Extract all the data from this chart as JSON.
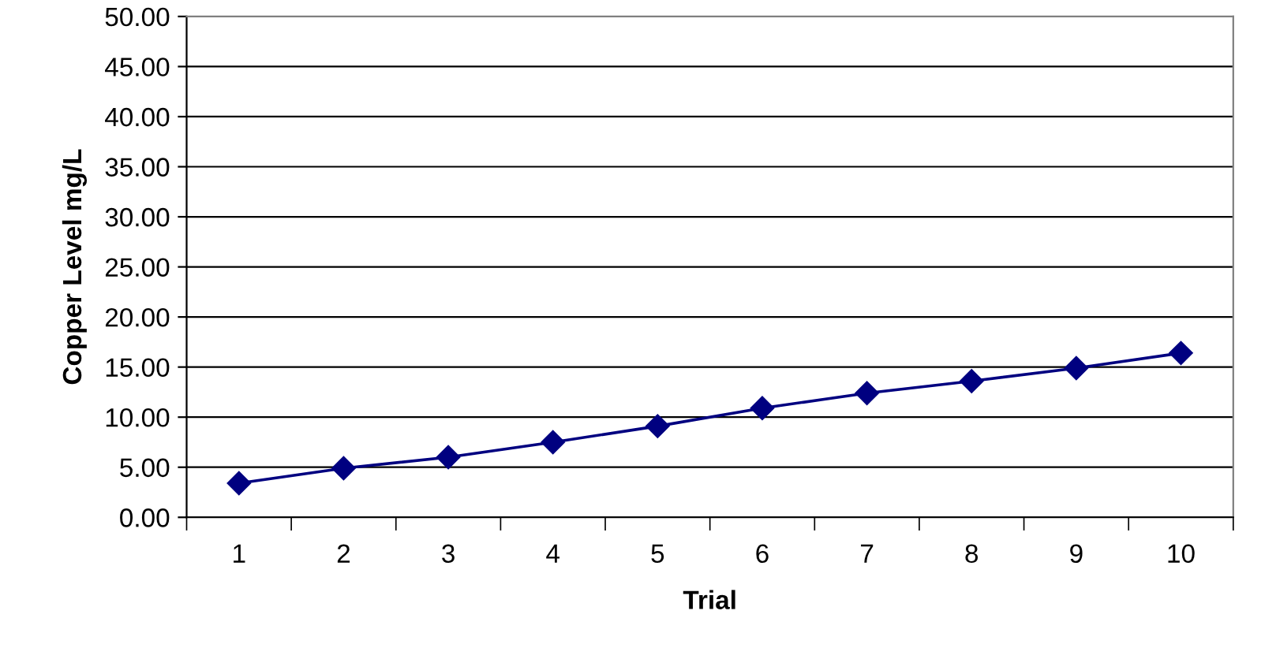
{
  "chart_data": {
    "type": "line",
    "xlabel": "Trial",
    "ylabel": "Copper Level mg/L",
    "categories": [
      "1",
      "2",
      "3",
      "4",
      "5",
      "6",
      "7",
      "8",
      "9",
      "10"
    ],
    "series": [
      {
        "color": "#000080",
        "values": [
          3.4,
          4.9,
          6.0,
          7.5,
          9.1,
          10.9,
          12.4,
          13.6,
          14.9,
          16.4
        ]
      }
    ],
    "ylim": [
      0,
      50
    ],
    "yticks": [
      {
        "value": 0,
        "label": "0.00"
      },
      {
        "value": 5,
        "label": "5.00"
      },
      {
        "value": 10,
        "label": "10.00"
      },
      {
        "value": 15,
        "label": "15.00"
      },
      {
        "value": 20,
        "label": "20.00"
      },
      {
        "value": 25,
        "label": "25.00"
      },
      {
        "value": 30,
        "label": "30.00"
      },
      {
        "value": 35,
        "label": "35.00"
      },
      {
        "value": 40,
        "label": "40.00"
      },
      {
        "value": 45,
        "label": "45.00"
      },
      {
        "value": 50,
        "label": "50.00"
      }
    ],
    "grid": "y",
    "legend": false,
    "marker": "diamond",
    "line_style": "solid"
  }
}
